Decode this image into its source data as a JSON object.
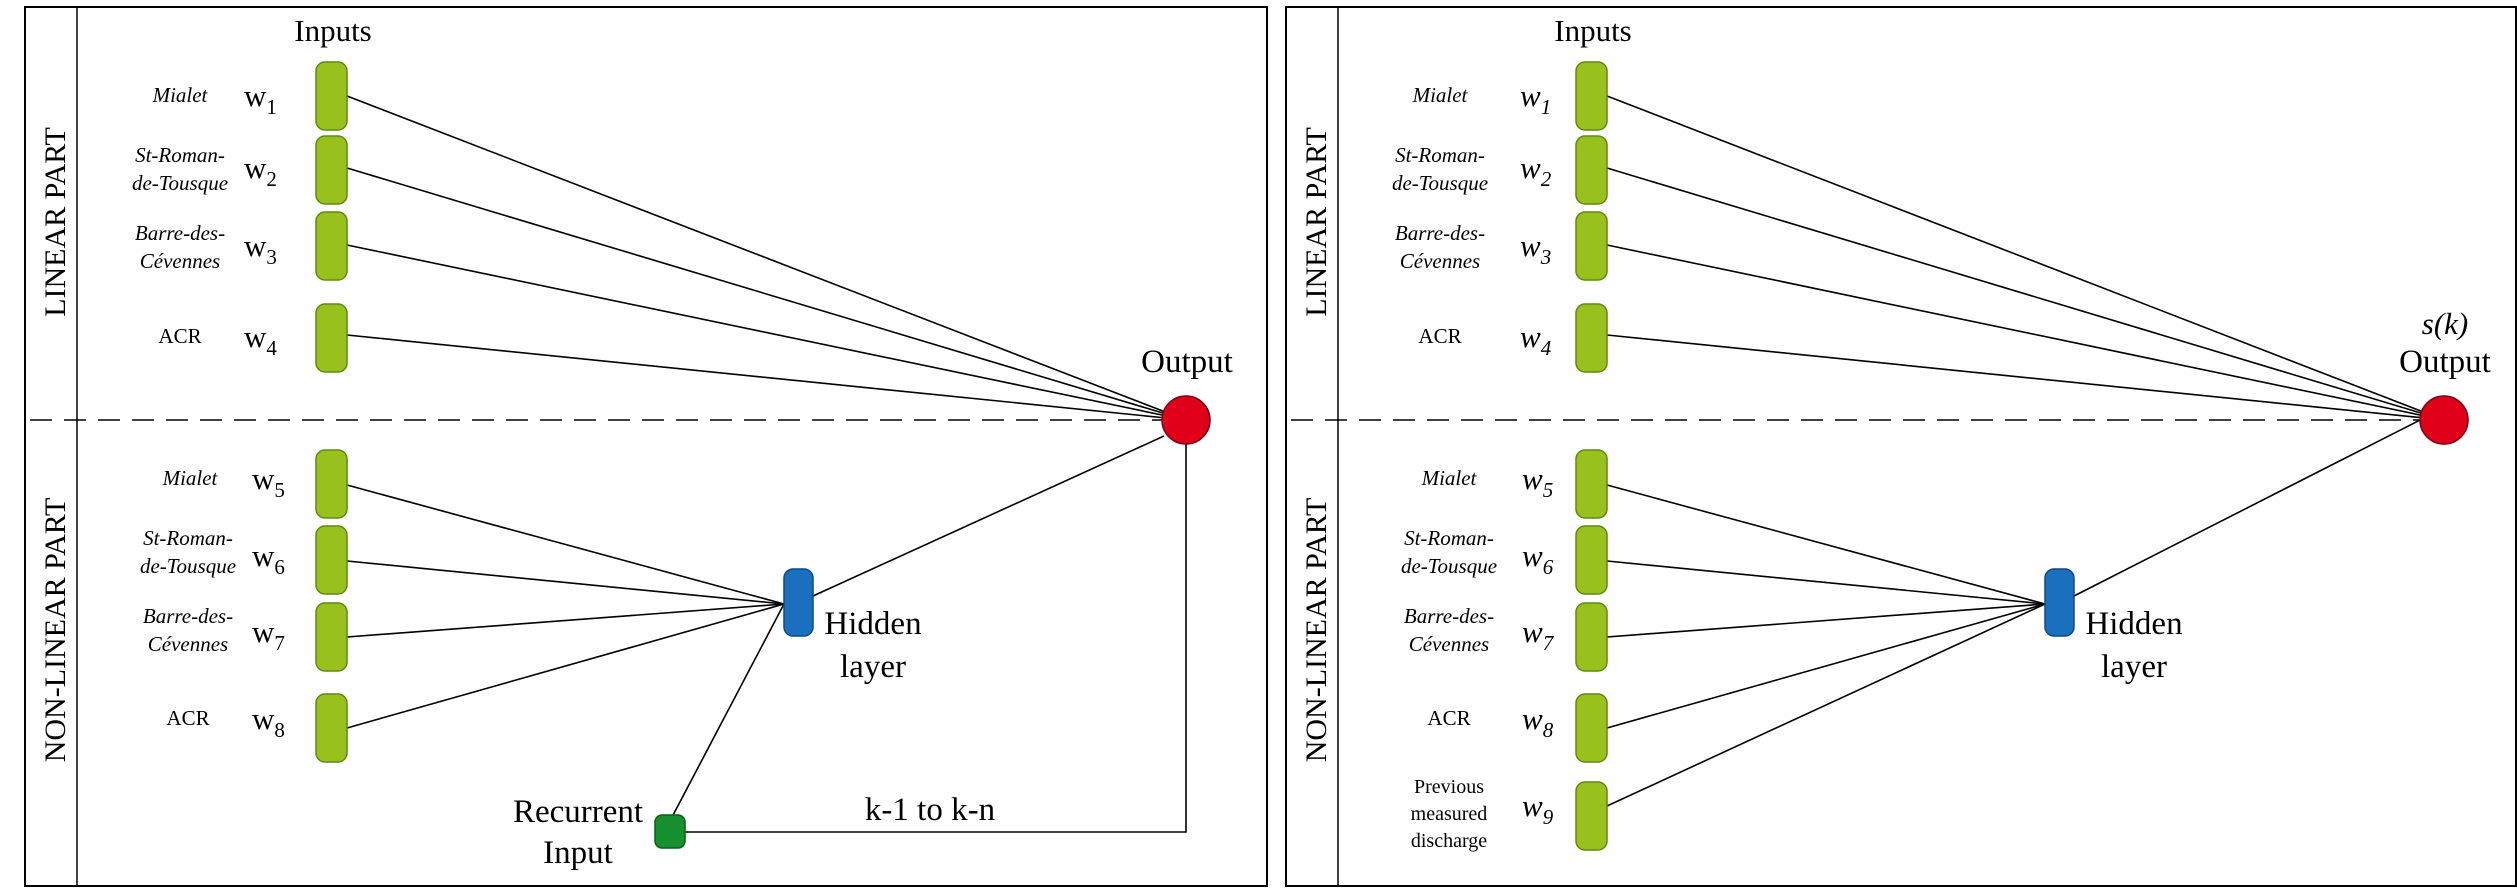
{
  "colors": {
    "input_node": "#99c11e",
    "input_node_stroke": "#5d8a10",
    "hidden_node": "#1b6fbf",
    "hidden_node_stroke": "#0d4a85",
    "recurrent_node": "#17912f",
    "recurrent_node_stroke": "#0b5e1a",
    "output_node": "#e0001a",
    "output_node_stroke": "#7a0010"
  },
  "left_panel": {
    "linear_part_label": "LINEAR PART",
    "non_linear_part_label": "NON-LINEAR PART",
    "inputs_title": "Inputs",
    "output_label": "Output",
    "hidden_label_line1": "Hidden",
    "hidden_label_line2": "layer",
    "recurrent_label_line1": "Recurrent",
    "recurrent_label_line2": "Input",
    "feedback_label": "k-1 to k-n",
    "linear_inputs": [
      {
        "name_lines": [
          "Mialet"
        ],
        "italic": true,
        "weight": "w",
        "sub": "1"
      },
      {
        "name_lines": [
          "St-Roman-",
          "de-Tousque"
        ],
        "italic": true,
        "weight": "w",
        "sub": "2"
      },
      {
        "name_lines": [
          "Barre-des-",
          "Cévennes"
        ],
        "italic": true,
        "weight": "w",
        "sub": "3"
      },
      {
        "name_lines": [
          "ACR"
        ],
        "italic": false,
        "weight": "w",
        "sub": "4"
      }
    ],
    "nonlinear_inputs": [
      {
        "name_lines": [
          "Mialet"
        ],
        "italic": true,
        "weight": "w",
        "sub": "5"
      },
      {
        "name_lines": [
          "St-Roman-",
          "de-Tousque"
        ],
        "italic": true,
        "weight": "w",
        "sub": "6"
      },
      {
        "name_lines": [
          "Barre-des-",
          "Cévennes"
        ],
        "italic": true,
        "weight": "w",
        "sub": "7"
      },
      {
        "name_lines": [
          "ACR"
        ],
        "italic": false,
        "weight": "w",
        "sub": "8"
      }
    ]
  },
  "right_panel": {
    "linear_part_label": "LINEAR PART",
    "non_linear_part_label": "NON-LINEAR PART",
    "inputs_title": "Inputs",
    "output_symbol": "s(k)",
    "output_label": "Output",
    "hidden_label_line1": "Hidden",
    "hidden_label_line2": "layer",
    "linear_inputs": [
      {
        "name_lines": [
          "Mialet"
        ],
        "italic": true,
        "weight": "w",
        "sub": "1"
      },
      {
        "name_lines": [
          "St-Roman-",
          "de-Tousque"
        ],
        "italic": true,
        "weight": "w",
        "sub": "2"
      },
      {
        "name_lines": [
          "Barre-des-",
          "Cévennes"
        ],
        "italic": true,
        "weight": "w",
        "sub": "3"
      },
      {
        "name_lines": [
          "ACR"
        ],
        "italic": false,
        "weight": "w",
        "sub": "4"
      }
    ],
    "nonlinear_inputs": [
      {
        "name_lines": [
          "Mialet"
        ],
        "italic": true,
        "weight": "w",
        "sub": "5"
      },
      {
        "name_lines": [
          "St-Roman-",
          "de-Tousque"
        ],
        "italic": true,
        "weight": "w",
        "sub": "6"
      },
      {
        "name_lines": [
          "Barre-des-",
          "Cévennes"
        ],
        "italic": true,
        "weight": "w",
        "sub": "7"
      },
      {
        "name_lines": [
          "ACR"
        ],
        "italic": false,
        "weight": "w",
        "sub": "8"
      },
      {
        "name_lines": [
          "Previous",
          "measured",
          "discharge"
        ],
        "italic": false,
        "weight": "w",
        "sub": "9"
      }
    ]
  }
}
